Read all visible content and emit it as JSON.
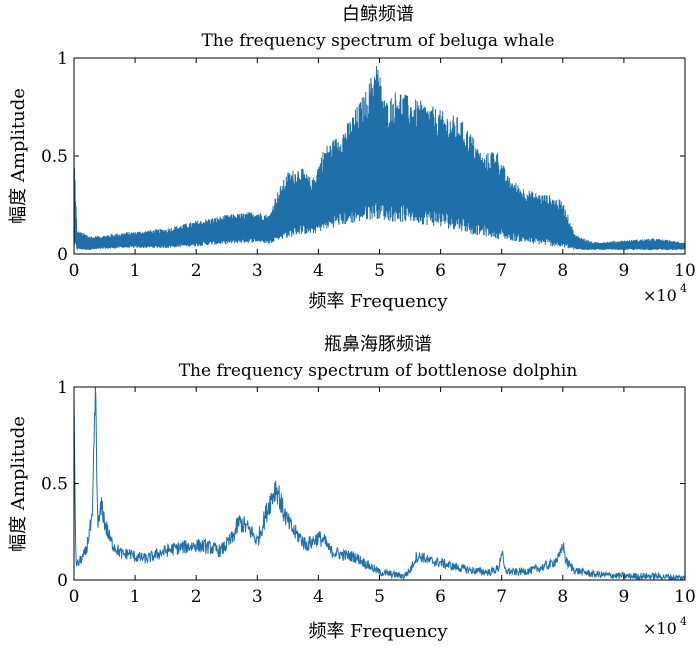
{
  "figure": {
    "line_color": "#1f6fa8",
    "axis_color": "#000000"
  },
  "chart_data": [
    {
      "type": "line",
      "title_cn": "白鲸频谱",
      "title": "The frequency spectrum of beluga whale",
      "xlabel": "频率 Frequency",
      "ylabel": "幅度 Amplitude",
      "x_exponent": "×10",
      "x_exponent_power": "4",
      "xlim": [
        0,
        10
      ],
      "ylim": [
        0,
        1
      ],
      "xticks": [
        0,
        1,
        2,
        3,
        4,
        5,
        6,
        7,
        8,
        9,
        10
      ],
      "yticks": [
        0,
        0.5,
        1
      ],
      "ytick_labels": [
        "0",
        "0.5",
        "1"
      ],
      "series": [
        {
          "name": "beluga",
          "envelope_x": [
            0,
            0.05,
            0.3,
            0.8,
            1.5,
            2.0,
            2.5,
            3.0,
            3.2,
            3.3,
            3.5,
            3.7,
            3.9,
            4.1,
            4.3,
            4.5,
            4.8,
            4.95,
            5.1,
            5.3,
            5.5,
            5.7,
            5.9,
            6.1,
            6.3,
            6.5,
            6.7,
            6.9,
            7.1,
            7.3,
            7.5,
            7.8,
            8.0,
            8.2,
            8.5,
            9.0,
            9.5,
            10
          ],
          "envelope_max": [
            0.55,
            0.12,
            0.09,
            0.11,
            0.13,
            0.17,
            0.2,
            0.22,
            0.2,
            0.3,
            0.42,
            0.45,
            0.38,
            0.55,
            0.6,
            0.68,
            0.85,
            1.0,
            0.78,
            0.85,
            0.8,
            0.78,
            0.75,
            0.72,
            0.7,
            0.62,
            0.5,
            0.55,
            0.4,
            0.35,
            0.32,
            0.3,
            0.27,
            0.1,
            0.06,
            0.07,
            0.08,
            0.06
          ],
          "envelope_min": [
            0.02,
            0.02,
            0.02,
            0.03,
            0.03,
            0.04,
            0.05,
            0.06,
            0.05,
            0.07,
            0.08,
            0.1,
            0.1,
            0.12,
            0.14,
            0.15,
            0.17,
            0.18,
            0.17,
            0.16,
            0.16,
            0.15,
            0.14,
            0.13,
            0.12,
            0.1,
            0.09,
            0.08,
            0.07,
            0.06,
            0.05,
            0.04,
            0.03,
            0.02,
            0.02,
            0.02,
            0.02,
            0.02
          ]
        }
      ]
    },
    {
      "type": "line",
      "title_cn": "瓶鼻海豚频谱",
      "title": "The frequency spectrum of bottlenose dolphin",
      "xlabel": "频率 Frequency",
      "ylabel": "幅度 Amplitude",
      "x_exponent": "×10",
      "x_exponent_power": "4",
      "xlim": [
        0,
        10
      ],
      "ylim": [
        0,
        1
      ],
      "xticks": [
        0,
        1,
        2,
        3,
        4,
        5,
        6,
        7,
        8,
        9,
        10
      ],
      "yticks": [
        0,
        0.5,
        1
      ],
      "ytick_labels": [
        "0",
        "0.5",
        "1"
      ],
      "series": [
        {
          "name": "dolphin",
          "x": [
            0,
            0.03,
            0.06,
            0.1,
            0.15,
            0.2,
            0.25,
            0.3,
            0.35,
            0.38,
            0.4,
            0.43,
            0.46,
            0.5,
            0.55,
            0.6,
            0.7,
            0.8,
            0.9,
            1.0,
            1.2,
            1.4,
            1.6,
            1.8,
            2.0,
            2.2,
            2.4,
            2.6,
            2.7,
            2.8,
            2.9,
            3.0,
            3.1,
            3.2,
            3.3,
            3.35,
            3.4,
            3.5,
            3.6,
            3.7,
            3.8,
            3.9,
            4.0,
            4.1,
            4.2,
            4.4,
            4.6,
            4.8,
            5.0,
            5.2,
            5.4,
            5.5,
            5.6,
            5.7,
            5.8,
            6.0,
            6.2,
            6.5,
            6.8,
            6.95,
            7.0,
            7.05,
            7.2,
            7.5,
            7.8,
            7.95,
            8.0,
            8.05,
            8.1,
            8.2,
            8.5,
            9.0,
            9.5,
            10
          ],
          "y": [
            0.95,
            0.1,
            0.08,
            0.1,
            0.12,
            0.15,
            0.25,
            0.3,
            1.0,
            0.4,
            0.28,
            0.35,
            0.38,
            0.3,
            0.25,
            0.2,
            0.16,
            0.13,
            0.14,
            0.12,
            0.11,
            0.14,
            0.16,
            0.17,
            0.18,
            0.17,
            0.15,
            0.22,
            0.3,
            0.28,
            0.25,
            0.2,
            0.3,
            0.4,
            0.48,
            0.45,
            0.38,
            0.3,
            0.25,
            0.22,
            0.18,
            0.2,
            0.22,
            0.2,
            0.15,
            0.13,
            0.12,
            0.08,
            0.04,
            0.03,
            0.02,
            0.05,
            0.12,
            0.12,
            0.1,
            0.09,
            0.07,
            0.05,
            0.04,
            0.06,
            0.15,
            0.05,
            0.04,
            0.05,
            0.08,
            0.12,
            0.19,
            0.1,
            0.08,
            0.05,
            0.03,
            0.02,
            0.02,
            0.01
          ]
        }
      ]
    }
  ]
}
